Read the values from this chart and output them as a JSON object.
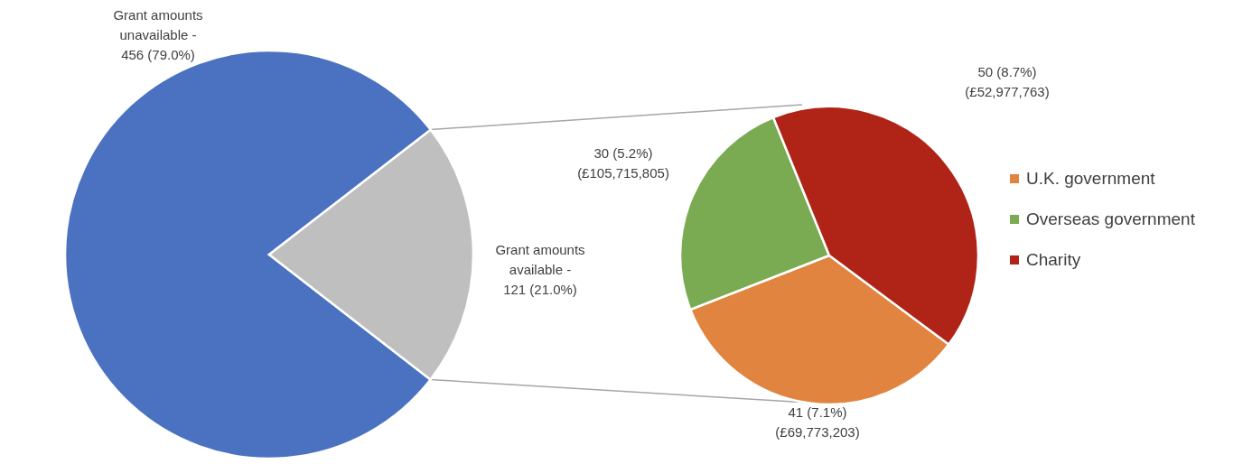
{
  "chart_data": [
    {
      "type": "pie",
      "categories": [
        "Grant amounts unavailable -",
        "Grant amounts available -"
      ],
      "values": [
        456,
        121
      ],
      "colors": [
        "#4a72c0",
        "#bfbfbf"
      ],
      "value_labels": [
        "456 (79.0%)",
        "121 (21.0%)"
      ],
      "legend": false
    },
    {
      "type": "pie",
      "categories": [
        "U.K. government",
        "Overseas government",
        "Charity"
      ],
      "values": [
        41,
        30,
        50
      ],
      "colors": [
        "#e0843f",
        "#7aab52",
        "#b02418"
      ],
      "value_labels": [
        "41 (7.1%) (£69,773,203)",
        "30 (5.2%) (£105,715,805)",
        "50 (8.7%) (£52,977,763)"
      ],
      "legend": "right"
    }
  ]
}
